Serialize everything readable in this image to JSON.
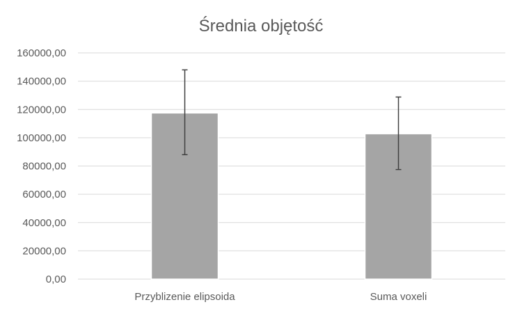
{
  "chart_data": {
    "type": "bar",
    "title": "Średnia objętość",
    "categories": [
      "Przyblizenie elipsoida",
      "Suma voxeli"
    ],
    "values": [
      117500,
      102800
    ],
    "error_bars": [
      {
        "low": 88000,
        "high": 148000
      },
      {
        "low": 77500,
        "high": 128800
      }
    ],
    "yticks": [
      "0,00",
      "20000,00",
      "40000,00",
      "60000,00",
      "80000,00",
      "100000,00",
      "120000,00",
      "140000,00",
      "160000,00"
    ],
    "ylim": [
      0,
      160000
    ],
    "ystep": 20000,
    "grid": true,
    "legend": "none",
    "colors": {
      "bar_fill": "#a5a5a5",
      "bar_stroke": "#ffffff",
      "grid": "#d9d9d9",
      "text": "#595959",
      "error_bar": "#404040"
    }
  }
}
